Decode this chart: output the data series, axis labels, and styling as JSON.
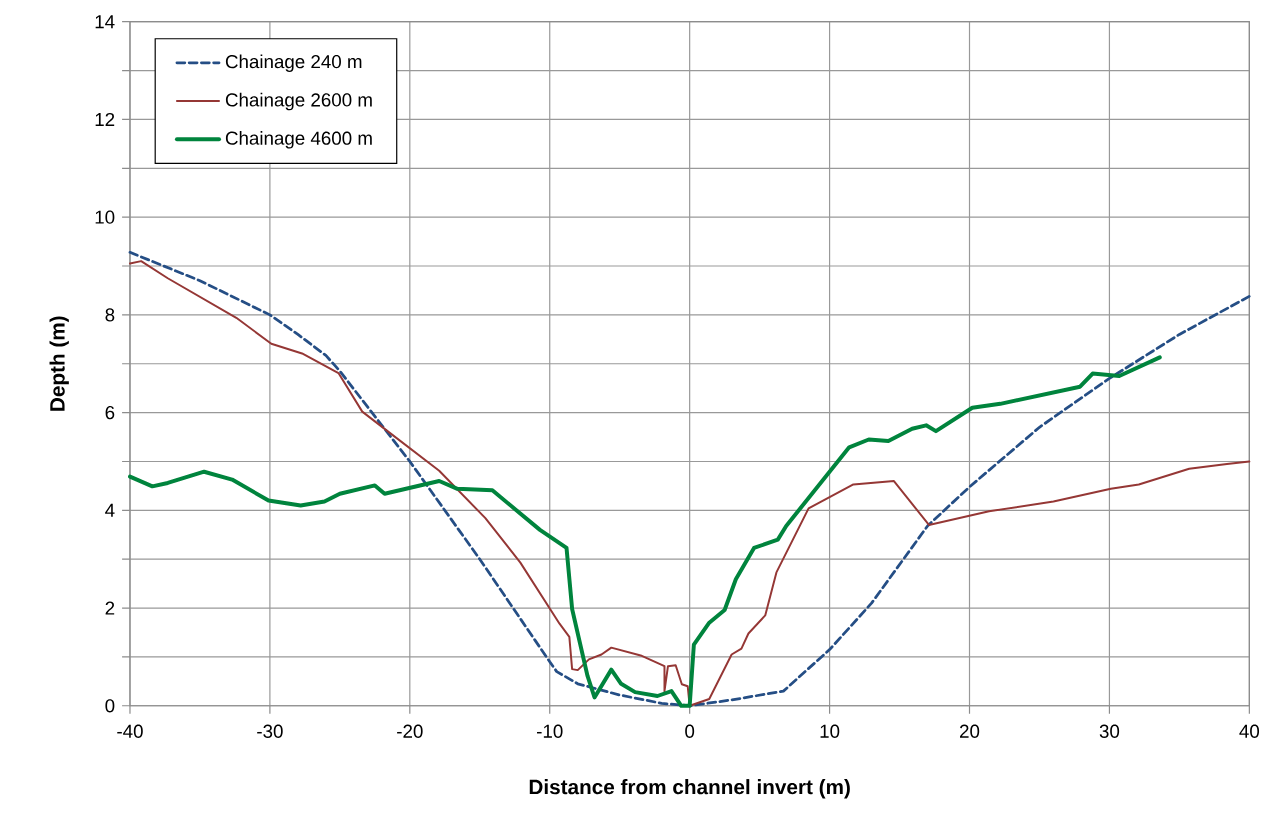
{
  "chart_data": {
    "type": "line",
    "xlabel": "Distance from channel invert (m)",
    "ylabel": "Depth (m)",
    "xlim": [
      -40,
      40
    ],
    "ylim": [
      0,
      14
    ],
    "xticks": [
      -40,
      -30,
      -20,
      -10,
      0,
      10,
      20,
      30,
      40
    ],
    "yticks": [
      0,
      {
        "value": 1,
        "label": null
      },
      2,
      {
        "value": 3,
        "label": null
      },
      4,
      {
        "value": 5,
        "label": null
      },
      6,
      {
        "value": 7,
        "label": null
      },
      8,
      {
        "value": 9,
        "label": null
      },
      10,
      {
        "value": 11,
        "label": null
      },
      12,
      {
        "value": 13,
        "label": null
      },
      14
    ],
    "grid": true,
    "legend": "top left",
    "marker": "none",
    "series": [
      {
        "name": "Chainage 240 m",
        "color": "#254e85",
        "line_style": "dashed",
        "x": [
          -40,
          -35,
          -30,
          -28,
          -26,
          -25,
          -20,
          -15,
          -10,
          -9.5,
          -8,
          -5,
          -2,
          0,
          3,
          6.7,
          10,
          13,
          17,
          20,
          25,
          30,
          35,
          40
        ],
        "values": [
          9.28,
          8.7,
          8.0,
          7.6,
          7.17,
          6.85,
          5.0,
          3.0,
          0.9,
          0.7,
          0.45,
          0.22,
          0.05,
          0,
          0.12,
          0.3,
          1.15,
          2.1,
          3.68,
          4.48,
          5.7,
          6.7,
          7.6,
          8.38
        ]
      },
      {
        "name": "Chainage 2600 m",
        "color": "#953735",
        "line_style": "solid",
        "x": [
          -40,
          -39.2,
          -37.3,
          -32.4,
          -29.9,
          -27.7,
          -25.1,
          -23.4,
          -21.5,
          -17.9,
          -14.6,
          -12.1,
          -9.3,
          -8.6,
          -8.4,
          -8.0,
          -7.2,
          -6.3,
          -5.6,
          -3.5,
          -1.8,
          -1.8,
          -1.55,
          -1.0,
          -0.56,
          -0.14,
          0,
          1.4,
          3.0,
          3.7,
          4.2,
          5.4,
          6.2,
          8.5,
          11.7,
          14.6,
          17.1,
          21.4,
          26.0,
          30.1,
          32.1,
          35.7,
          38.4,
          40
        ],
        "values": [
          9.05,
          9.1,
          8.75,
          7.94,
          7.41,
          7.21,
          6.81,
          6.02,
          5.6,
          4.81,
          3.84,
          2.93,
          1.68,
          1.41,
          0.75,
          0.73,
          0.95,
          1.05,
          1.19,
          1.03,
          0.81,
          0.3,
          0.81,
          0.83,
          0.44,
          0.4,
          0,
          0.14,
          1.05,
          1.17,
          1.48,
          1.85,
          2.73,
          4.04,
          4.53,
          4.6,
          3.7,
          3.98,
          4.18,
          4.44,
          4.53,
          4.85,
          4.95,
          5.0
        ]
      },
      {
        "name": "Chainage 4600 m",
        "color": "#00843d",
        "line_style": "solid",
        "x": [
          -40,
          -38.4,
          -37.3,
          -34.7,
          -32.7,
          -30.1,
          -27.8,
          -26.1,
          -25.0,
          -22.5,
          -21.8,
          -17.9,
          -16.6,
          -14.1,
          -10.7,
          -9.3,
          -8.8,
          -8.4,
          -7.3,
          -6.8,
          -5.6,
          -4.9,
          -3.9,
          -2.3,
          -1.3,
          -0.6,
          0,
          0.3,
          1.4,
          2.5,
          3.3,
          4.6,
          6.3,
          6.9,
          11.4,
          12.8,
          14.2,
          15.9,
          16.9,
          17.6,
          20.2,
          22.2,
          27.9,
          28.8,
          30.7,
          33.6
        ],
        "values": [
          4.69,
          4.49,
          4.56,
          4.79,
          4.63,
          4.2,
          4.1,
          4.18,
          4.34,
          4.51,
          4.34,
          4.6,
          4.44,
          4.41,
          3.6,
          3.33,
          3.23,
          1.98,
          0.61,
          0.17,
          0.74,
          0.45,
          0.28,
          0.2,
          0.3,
          0,
          0,
          1.25,
          1.7,
          1.96,
          2.59,
          3.23,
          3.4,
          3.68,
          5.29,
          5.45,
          5.42,
          5.67,
          5.74,
          5.62,
          6.1,
          6.18,
          6.53,
          6.8,
          6.75,
          7.13
        ]
      }
    ]
  }
}
